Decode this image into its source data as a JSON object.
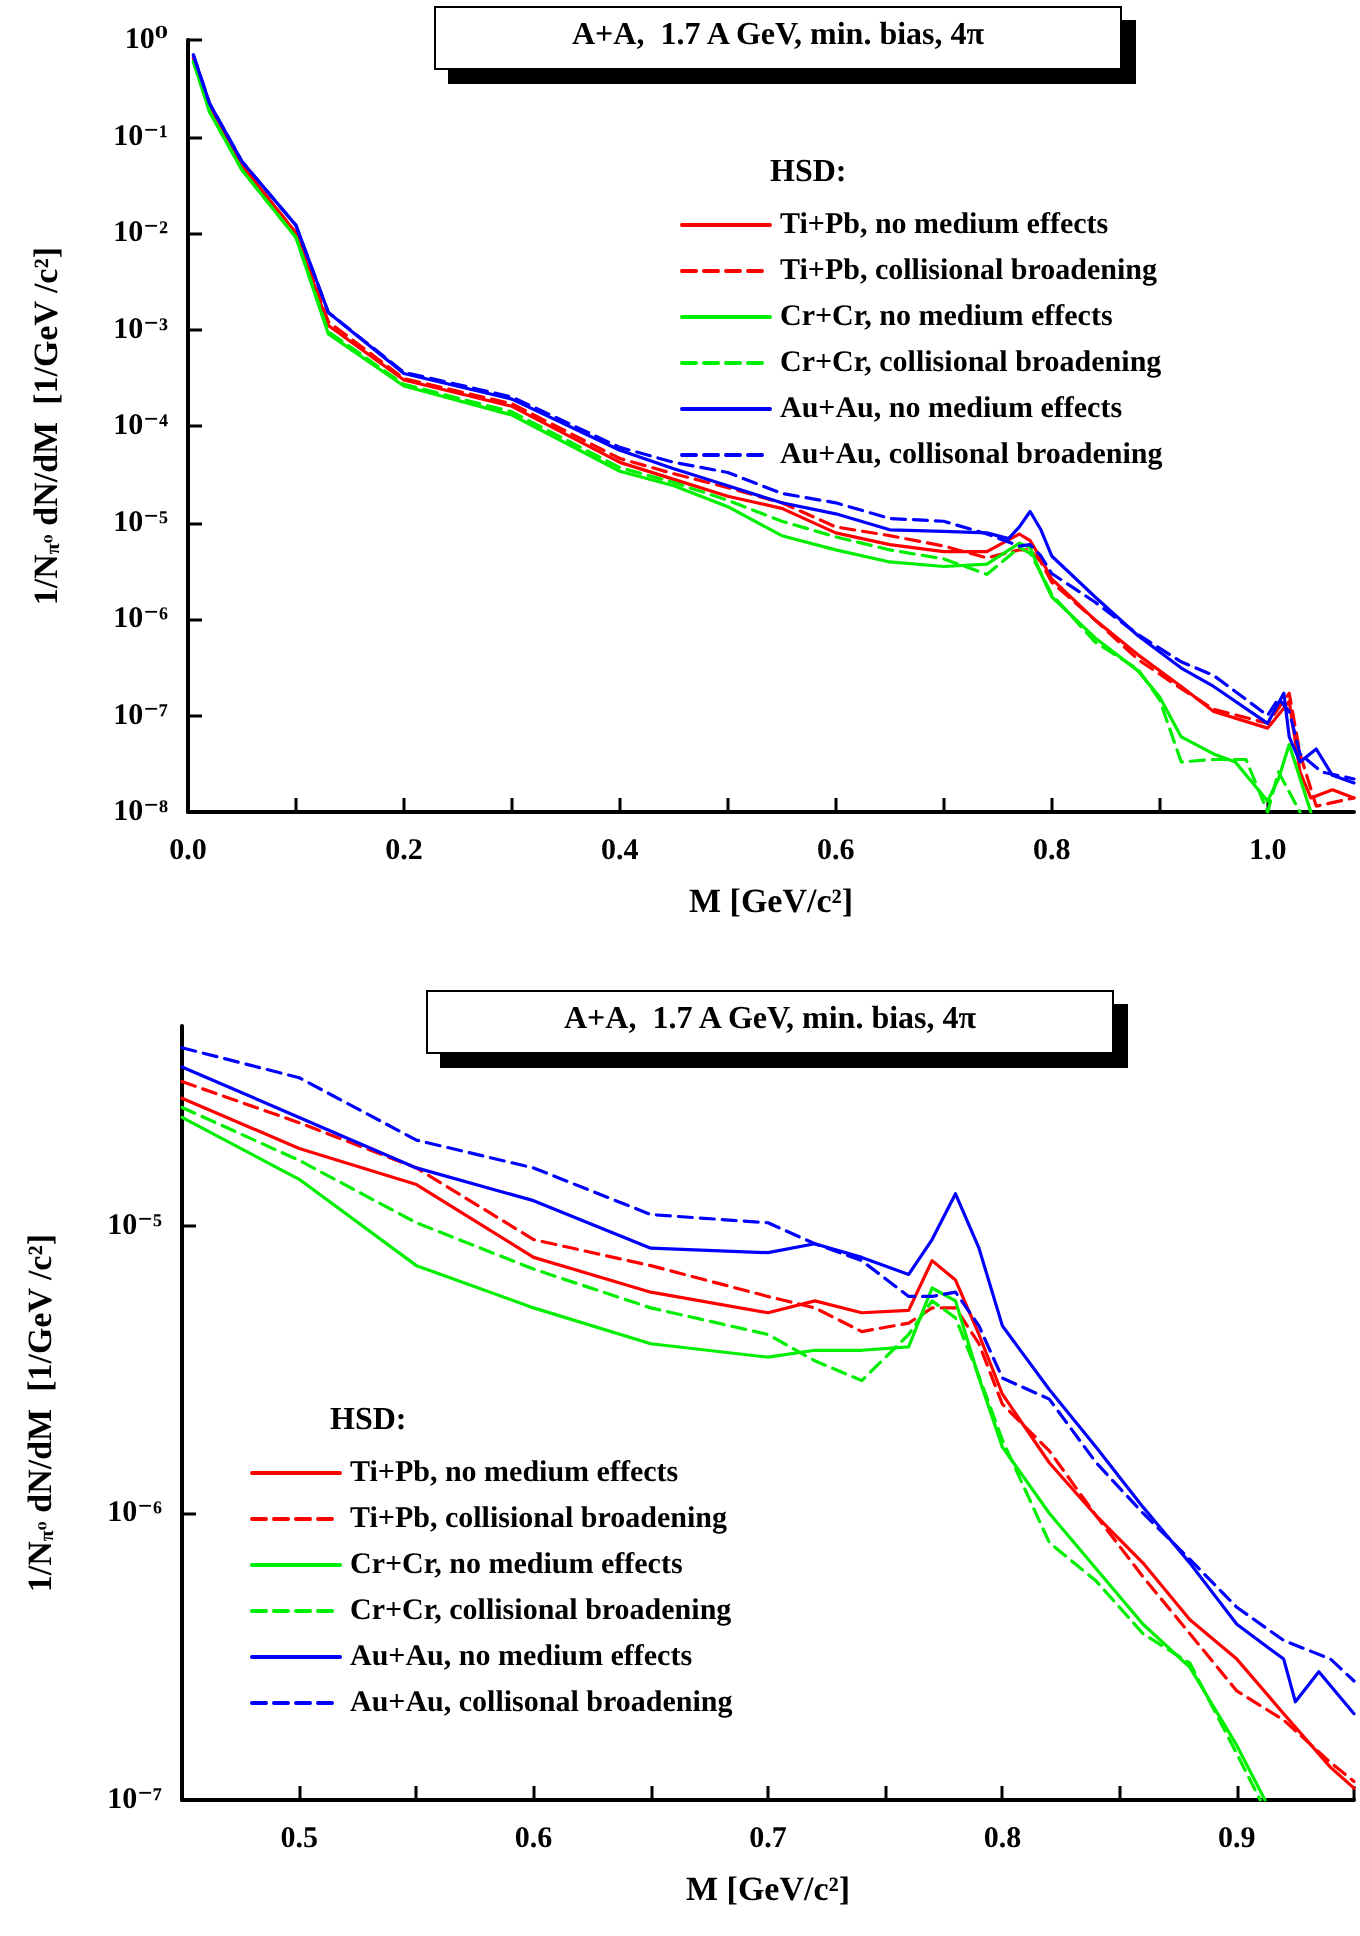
{
  "chart_data": [
    {
      "type": "line",
      "title": "A+A,  1.7 A GeV, min. bias, 4π",
      "xlabel": "M [GeV/c²]",
      "ylabel": "1/N$_{π⁰}$ dN/dM  [1/GeV /c²]",
      "legend_title": "HSD:",
      "legend": "top right",
      "grid": false,
      "marker": "none",
      "log": "y",
      "xlim": [
        0,
        1.08
      ],
      "xticks": [
        {
          "value": 0,
          "label": "0.0"
        },
        {
          "value": 0.1,
          "label": null
        },
        {
          "value": 0.2,
          "label": "0.2"
        },
        {
          "value": 0.3,
          "label": null
        },
        {
          "value": 0.4,
          "label": "0.4"
        },
        {
          "value": 0.5,
          "label": null
        },
        {
          "value": 0.6,
          "label": "0.6"
        },
        {
          "value": 0.7,
          "label": null
        },
        {
          "value": 0.8,
          "label": "0.8"
        },
        {
          "value": 0.9,
          "label": null
        },
        {
          "value": 1.0,
          "label": "1.0"
        }
      ],
      "ylim": [
        1e-08,
        1
      ],
      "yticks": [
        {
          "value": 1e-08,
          "label": "10⁻⁸"
        },
        {
          "value": 1e-07,
          "label": "10⁻⁷"
        },
        {
          "value": 1e-06,
          "label": "10⁻⁶"
        },
        {
          "value": 1e-05,
          "label": "10⁻⁵"
        },
        {
          "value": 0.0001,
          "label": "10⁻⁴"
        },
        {
          "value": 0.001,
          "label": "10⁻³"
        },
        {
          "value": 0.01,
          "label": "10⁻²"
        },
        {
          "value": 0.1,
          "label": "10⁻¹"
        },
        {
          "value": 1,
          "label": "10⁰"
        }
      ],
      "series": [
        {
          "name": "Ti+Pb, no medium effects",
          "color": "#ff0000",
          "line_style": "solid",
          "x": [
            0.005,
            0.02,
            0.05,
            0.1,
            0.13,
            0.2,
            0.3,
            0.4,
            0.45,
            0.5,
            0.55,
            0.6,
            0.65,
            0.7,
            0.74,
            0.77,
            0.78,
            0.79,
            0.8,
            0.84,
            0.88,
            0.92,
            0.95,
            1.0,
            1.02,
            1.03,
            1.04,
            1.06,
            1.08
          ],
          "values": [
            0.65,
            0.2,
            0.05,
            0.01,
            0.0011,
            0.0003,
            0.00016,
            4.2e-05,
            2.8e-05,
            1.87e-05,
            1.4e-05,
            7.8e-06,
            5.9e-06,
            5e-06,
            5e-06,
            7.6e-06,
            6.5e-06,
            4.2e-06,
            2.6e-06,
            9.8e-07,
            4.25e-07,
            2e-07,
            1.1e-07,
            7.4e-08,
            1.4e-07,
            2.6e-08,
            1.4e-08,
            1.7e-08,
            1.4e-08
          ]
        },
        {
          "name": "Ti+Pb, collisional broadening",
          "color": "#ff0000",
          "line_style": "dashed",
          "x": [
            0.005,
            0.02,
            0.05,
            0.1,
            0.13,
            0.2,
            0.3,
            0.4,
            0.45,
            0.5,
            0.55,
            0.6,
            0.65,
            0.7,
            0.74,
            0.77,
            0.78,
            0.79,
            0.8,
            0.84,
            0.88,
            0.92,
            0.95,
            1.0,
            1.02,
            1.03,
            1.045,
            1.08
          ],
          "values": [
            0.65,
            0.2,
            0.05,
            0.01,
            0.0012,
            0.00031,
            0.00017,
            4.6e-05,
            3.2e-05,
            2.3e-05,
            1.6e-05,
            9e-06,
            7.3e-06,
            5.7e-06,
            4.3e-06,
            5.2e-06,
            5.2e-06,
            3.9e-06,
            2.4e-06,
            9.8e-07,
            3.8e-07,
            1.9e-07,
            1.16e-07,
            8.3e-08,
            1.7e-07,
            4e-08,
            1.15e-08,
            1.4e-08
          ]
        },
        {
          "name": "Cr+Cr, no medium effects",
          "color": "#00ee00",
          "line_style": "solid",
          "x": [
            0.005,
            0.02,
            0.05,
            0.1,
            0.13,
            0.2,
            0.3,
            0.4,
            0.45,
            0.5,
            0.55,
            0.6,
            0.65,
            0.7,
            0.74,
            0.77,
            0.78,
            0.79,
            0.8,
            0.84,
            0.88,
            0.9,
            0.92,
            0.95,
            0.97,
            1.0,
            1.01,
            1.02,
            1.04
          ],
          "values": [
            0.6,
            0.18,
            0.045,
            0.009,
            0.0009,
            0.00026,
            0.00013,
            3.4e-05,
            2.4e-05,
            1.46e-05,
            7.3e-06,
            5.2e-06,
            3.9e-06,
            3.5e-06,
            3.7e-06,
            6.1e-06,
            5.5e-06,
            2.96e-06,
            1.7e-06,
            6.4e-07,
            2.9e-07,
            1.55e-07,
            6e-08,
            4e-08,
            3.3e-08,
            1.3e-08,
            2.2e-08,
            5e-08,
            1e-08
          ]
        },
        {
          "name": "Cr+Cr, collisional broadening",
          "color": "#00ee00",
          "line_style": "dashed",
          "x": [
            0.005,
            0.02,
            0.05,
            0.1,
            0.13,
            0.2,
            0.3,
            0.4,
            0.45,
            0.5,
            0.55,
            0.6,
            0.65,
            0.7,
            0.74,
            0.77,
            0.78,
            0.79,
            0.8,
            0.84,
            0.88,
            0.9,
            0.92,
            0.95,
            0.98,
            1.0,
            1.01,
            1.03
          ],
          "values": [
            0.6,
            0.18,
            0.045,
            0.009,
            0.00095,
            0.00027,
            0.00014,
            3.7e-05,
            2.6e-05,
            1.7e-05,
            1.03e-05,
            7.1e-06,
            5.2e-06,
            4.2e-06,
            2.9e-06,
            5.5e-06,
            4.8e-06,
            3e-06,
            1.8e-06,
            5.8e-07,
            3e-07,
            1.45e-07,
            3.3e-08,
            3.5e-08,
            3.5e-08,
            1e-08,
            2.6e-08,
            1e-08
          ]
        },
        {
          "name": "Au+Au, no medium effects",
          "color": "#0000ff",
          "line_style": "solid",
          "x": [
            0.005,
            0.02,
            0.05,
            0.1,
            0.13,
            0.2,
            0.3,
            0.4,
            0.45,
            0.5,
            0.55,
            0.6,
            0.65,
            0.7,
            0.74,
            0.76,
            0.77,
            0.78,
            0.79,
            0.8,
            0.84,
            0.88,
            0.92,
            0.95,
            1.0,
            1.015,
            1.02,
            1.03,
            1.045,
            1.06,
            1.08
          ],
          "values": [
            0.7,
            0.22,
            0.055,
            0.012,
            0.0015,
            0.00035,
            0.00019,
            5.6e-05,
            3.6e-05,
            2.4e-05,
            1.6e-05,
            1.23e-05,
            8.4e-06,
            8.1e-06,
            7.8e-06,
            6.8e-06,
            9e-06,
            1.3e-05,
            8.4e-06,
            4.5e-06,
            1.7e-06,
            6.7e-07,
            3.1e-07,
            2e-07,
            8.3e-08,
            1.7e-07,
            6e-08,
            3.3e-08,
            4.5e-08,
            2.4e-08,
            2e-08
          ]
        },
        {
          "name": "Au+Au, collisonal broadening",
          "color": "#0000ff",
          "line_style": "dashed",
          "x": [
            0.005,
            0.02,
            0.05,
            0.1,
            0.13,
            0.2,
            0.3,
            0.4,
            0.45,
            0.5,
            0.55,
            0.6,
            0.65,
            0.7,
            0.74,
            0.77,
            0.78,
            0.79,
            0.8,
            0.84,
            0.88,
            0.92,
            0.95,
            1.0,
            1.01,
            1.02,
            1.03,
            1.05,
            1.08
          ],
          "values": [
            0.7,
            0.22,
            0.055,
            0.012,
            0.0015,
            0.00036,
            0.0002,
            6e-05,
            4.2e-05,
            3.3e-05,
            2e-05,
            1.6e-05,
            1.1e-05,
            1.03e-05,
            7.6e-06,
            5.7e-06,
            5.9e-06,
            4.5e-06,
            2.96e-06,
            1.5e-06,
            6.9e-07,
            3.6e-07,
            2.6e-07,
            1e-07,
            1.5e-07,
            1.1e-07,
            4e-08,
            2.6e-08,
            2.2e-08
          ]
        }
      ]
    },
    {
      "type": "line",
      "title": "A+A,  1.7 A GeV, min. bias, 4π",
      "xlabel": "M [GeV/c²]",
      "ylabel": "1/N$_{π⁰}$ dN/dM  [1/GeV /c²]",
      "legend_title": "HSD:",
      "legend": "bottom left",
      "grid": false,
      "marker": "none",
      "log": "y",
      "xlim": [
        0.45,
        0.95
      ],
      "xticks": [
        {
          "value": 0.45,
          "label": null
        },
        0.5,
        {
          "value": 0.55,
          "label": null
        },
        0.6,
        {
          "value": 0.65,
          "label": null
        },
        0.7,
        {
          "value": 0.75,
          "label": null
        },
        0.8,
        {
          "value": 0.85,
          "label": null
        },
        0.9,
        {
          "value": 0.95,
          "label": null
        }
      ],
      "ylim": [
        1e-07,
        5e-05
      ],
      "yticks": [
        {
          "value": 1e-07,
          "label": "10⁻⁷"
        },
        {
          "value": 1e-06,
          "label": "10⁻⁶"
        },
        {
          "value": 1e-05,
          "label": "10⁻⁵"
        }
      ],
      "series": [
        {
          "name": "Ti+Pb, no medium effects",
          "color": "#ff0000",
          "line_style": "solid",
          "x": [
            0.45,
            0.5,
            0.55,
            0.6,
            0.65,
            0.7,
            0.72,
            0.74,
            0.76,
            0.77,
            0.78,
            0.79,
            0.8,
            0.82,
            0.84,
            0.86,
            0.88,
            0.9,
            0.92,
            0.94,
            0.95
          ],
          "values": [
            2.8e-05,
            1.87e-05,
            1.4e-05,
            7.8e-06,
            5.9e-06,
            5e-06,
            5.5e-06,
            5e-06,
            5.1e-06,
            7.6e-06,
            6.5e-06,
            4.2e-06,
            2.6e-06,
            1.5e-06,
            9.8e-07,
            6.7e-07,
            4.25e-07,
            3.1e-07,
            2e-07,
            1.3e-07,
            1.1e-07
          ]
        },
        {
          "name": "Ti+Pb, collisional broadening",
          "color": "#ff0000",
          "line_style": "dashed",
          "x": [
            0.45,
            0.5,
            0.55,
            0.6,
            0.65,
            0.7,
            0.72,
            0.74,
            0.76,
            0.77,
            0.78,
            0.79,
            0.8,
            0.82,
            0.84,
            0.86,
            0.88,
            0.9,
            0.92,
            0.94,
            0.95
          ],
          "values": [
            3.2e-05,
            2.3e-05,
            1.6e-05,
            9e-06,
            7.3e-06,
            5.7e-06,
            5.2e-06,
            4.3e-06,
            4.6e-06,
            5.2e-06,
            5.2e-06,
            3.9e-06,
            2.4e-06,
            1.65e-06,
            9.8e-07,
            6e-07,
            3.8e-07,
            2.4e-07,
            1.9e-07,
            1.35e-07,
            1.16e-07
          ]
        },
        {
          "name": "Cr+Cr, no medium effects",
          "color": "#00ee00",
          "line_style": "solid",
          "x": [
            0.45,
            0.5,
            0.55,
            0.6,
            0.65,
            0.7,
            0.72,
            0.74,
            0.76,
            0.77,
            0.78,
            0.79,
            0.8,
            0.82,
            0.84,
            0.86,
            0.88,
            0.9,
            0.912
          ],
          "values": [
            2.4e-05,
            1.46e-05,
            7.3e-06,
            5.2e-06,
            3.9e-06,
            3.5e-06,
            3.7e-06,
            3.7e-06,
            3.8e-06,
            6.1e-06,
            5.5e-06,
            2.96e-06,
            1.7e-06,
            1e-06,
            6.4e-07,
            4.1e-07,
            2.9e-07,
            1.55e-07,
            1e-07
          ]
        },
        {
          "name": "Cr+Cr, collisional broadening",
          "color": "#00ee00",
          "line_style": "dashed",
          "x": [
            0.45,
            0.5,
            0.55,
            0.6,
            0.65,
            0.7,
            0.72,
            0.74,
            0.76,
            0.77,
            0.78,
            0.79,
            0.8,
            0.82,
            0.84,
            0.86,
            0.88,
            0.9,
            0.91
          ],
          "values": [
            2.6e-05,
            1.7e-05,
            1.03e-05,
            7.1e-06,
            5.2e-06,
            4.2e-06,
            3.4e-06,
            2.9e-06,
            4.2e-06,
            5.5e-06,
            4.8e-06,
            3e-06,
            1.8e-06,
            7.9e-07,
            5.8e-07,
            3.8e-07,
            3e-07,
            1.45e-07,
            1e-07
          ]
        },
        {
          "name": "Au+Au, no medium effects",
          "color": "#0000ff",
          "line_style": "solid",
          "x": [
            0.45,
            0.5,
            0.55,
            0.6,
            0.65,
            0.7,
            0.72,
            0.74,
            0.76,
            0.77,
            0.78,
            0.79,
            0.8,
            0.82,
            0.84,
            0.86,
            0.88,
            0.9,
            0.92,
            0.925,
            0.935,
            0.95
          ],
          "values": [
            3.6e-05,
            2.4e-05,
            1.6e-05,
            1.23e-05,
            8.4e-06,
            8.1e-06,
            8.7e-06,
            7.8e-06,
            6.8e-06,
            9e-06,
            1.3e-05,
            8.4e-06,
            4.5e-06,
            2.7e-06,
            1.7e-06,
            1.05e-06,
            6.7e-07,
            4.1e-07,
            3.1e-07,
            2.2e-07,
            2.8e-07,
            2e-07
          ]
        },
        {
          "name": "Au+Au, collisonal broadening",
          "color": "#0000ff",
          "line_style": "dashed",
          "x": [
            0.45,
            0.5,
            0.55,
            0.6,
            0.65,
            0.7,
            0.72,
            0.74,
            0.76,
            0.77,
            0.78,
            0.79,
            0.8,
            0.82,
            0.84,
            0.86,
            0.88,
            0.9,
            0.92,
            0.94,
            0.95
          ],
          "values": [
            4.2e-05,
            3.3e-05,
            2e-05,
            1.6e-05,
            1.1e-05,
            1.03e-05,
            8.7e-06,
            7.6e-06,
            5.7e-06,
            5.7e-06,
            5.9e-06,
            4.5e-06,
            2.96e-06,
            2.5e-06,
            1.5e-06,
            1e-06,
            6.9e-07,
            4.7e-07,
            3.6e-07,
            3.1e-07,
            2.6e-07
          ]
        }
      ]
    }
  ]
}
